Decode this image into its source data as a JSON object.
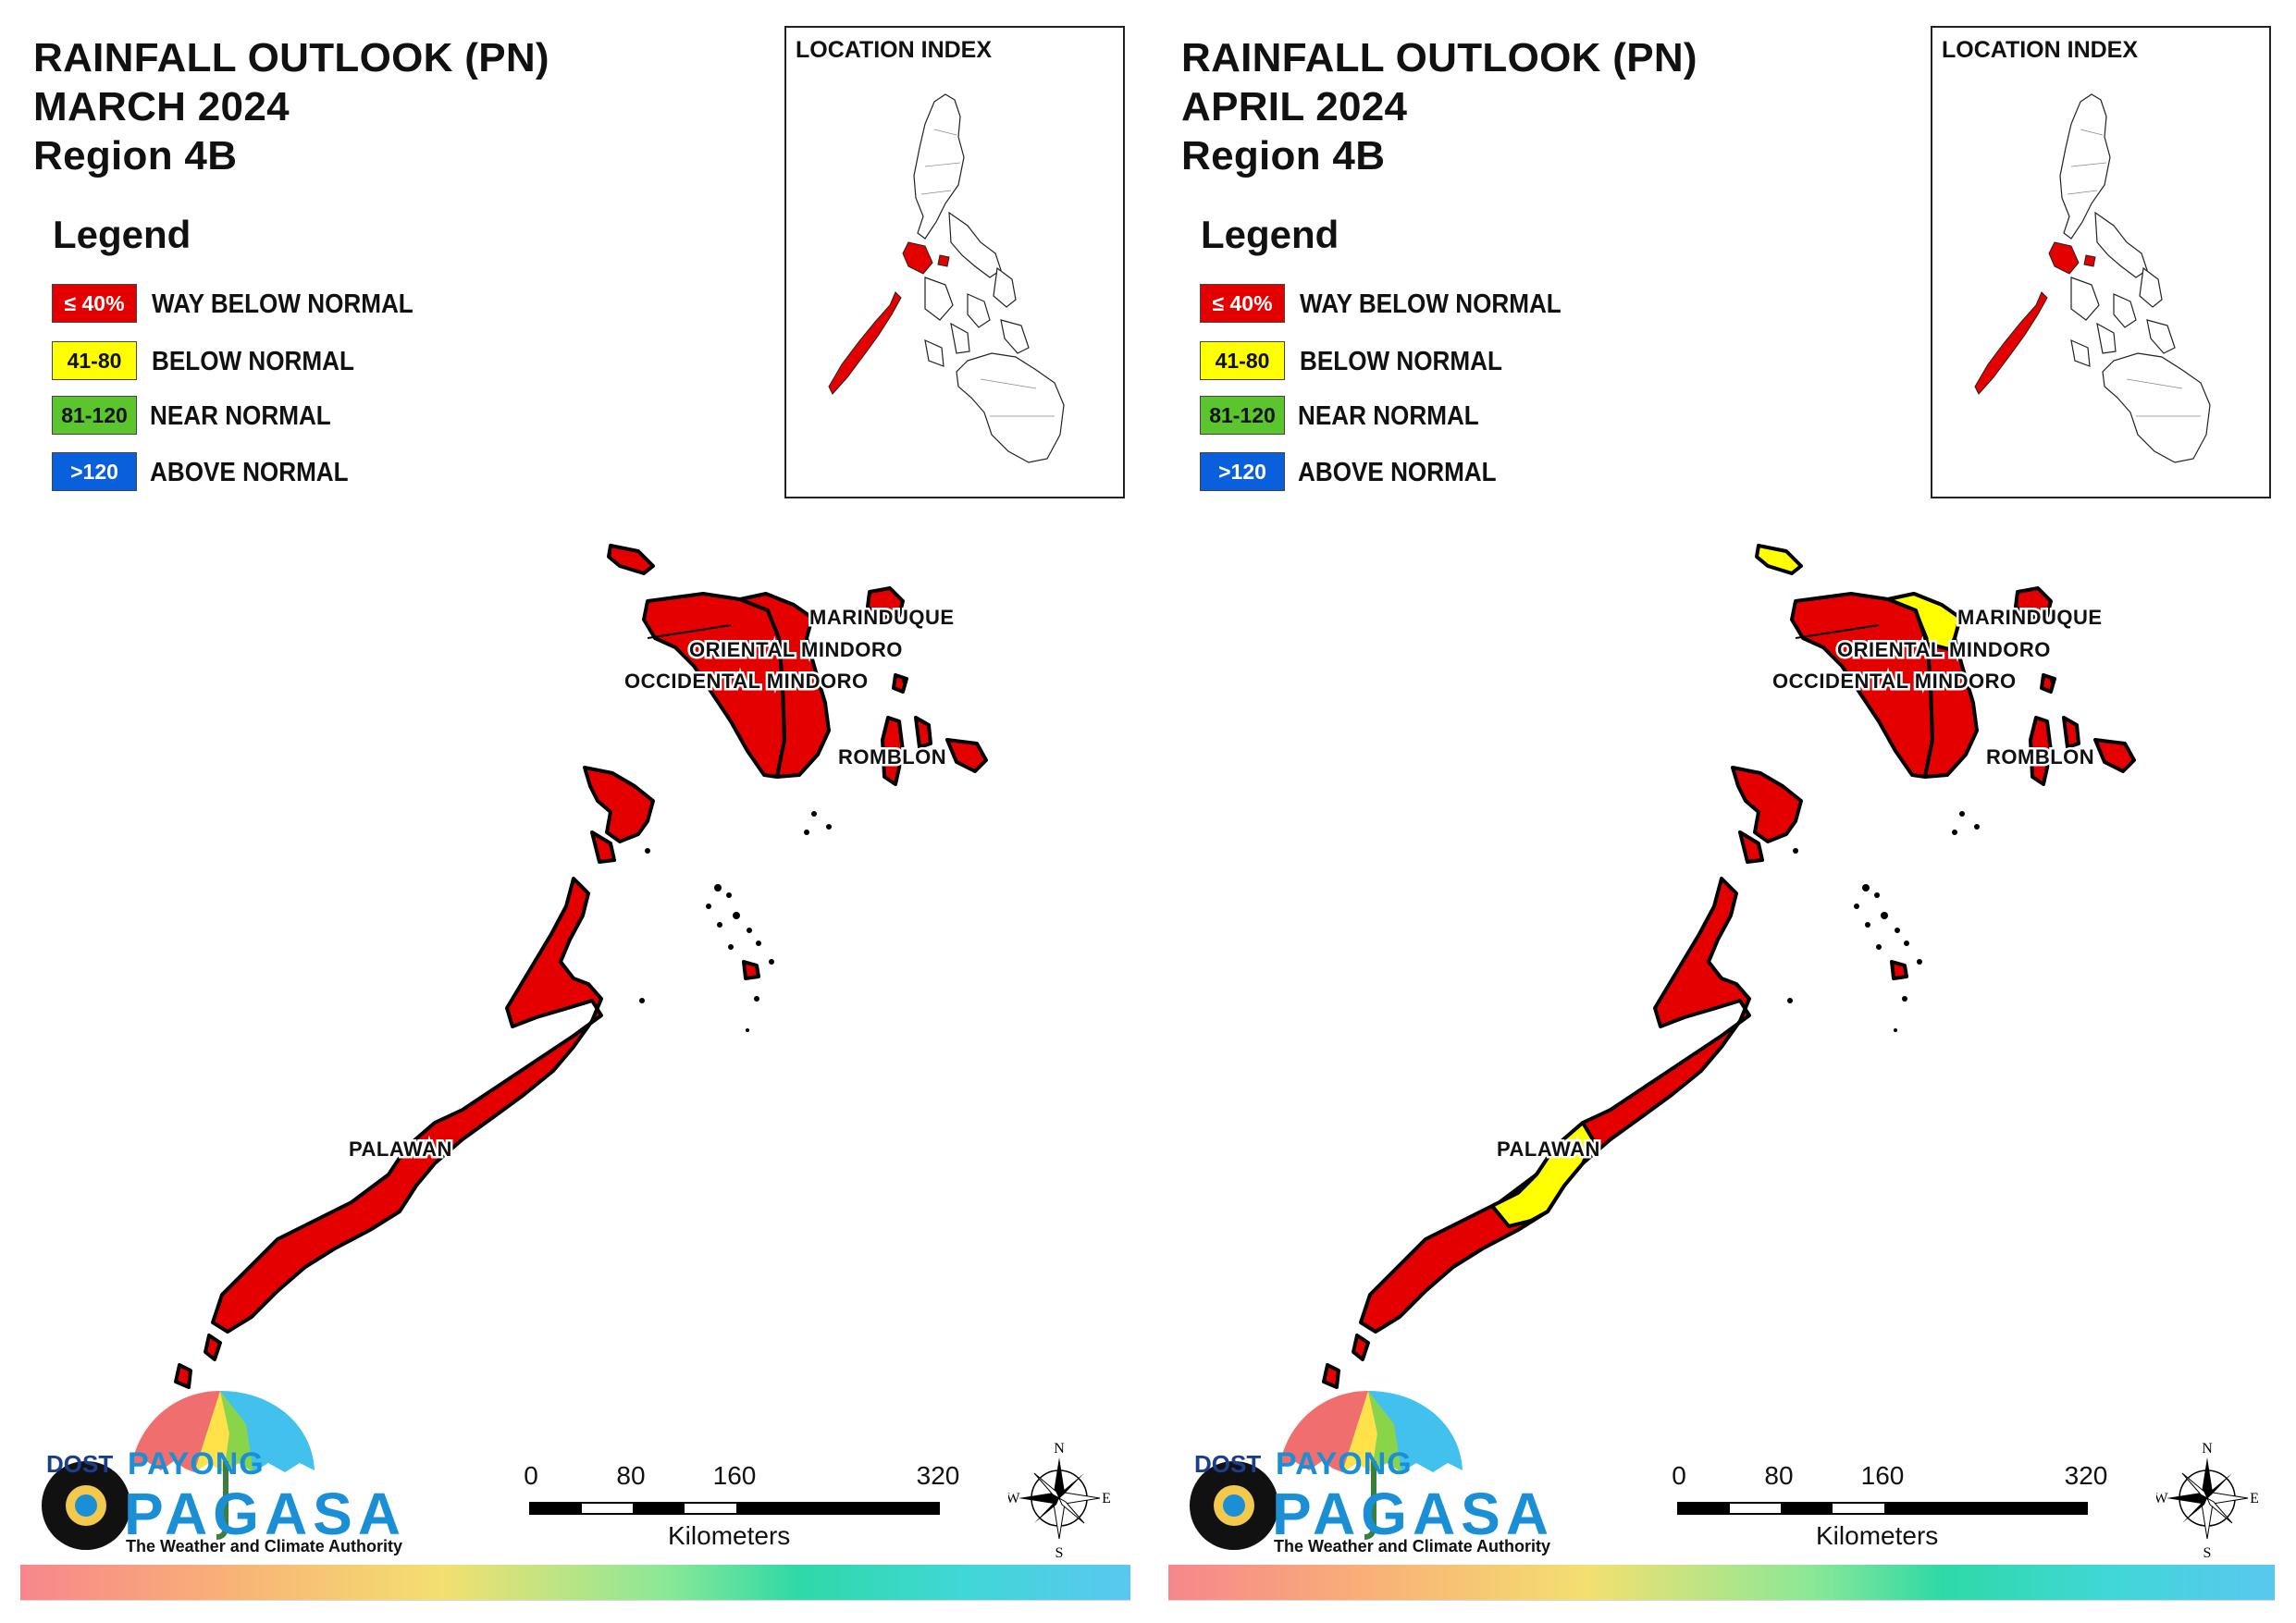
{
  "colors": {
    "way_below": "#e50000",
    "below": "#ffff00",
    "near": "#5ac52c",
    "above": "#0a5fdc"
  },
  "panels": [
    {
      "title_line1": "RAINFALL OUTLOOK (PN)",
      "title_line2": "MARCH 2024",
      "title_line3": "Region 4B",
      "legend_title": "Legend",
      "legend": [
        {
          "code": "≤ 40%",
          "label": "WAY BELOW NORMAL"
        },
        {
          "code": "41-80",
          "label": "BELOW NORMAL"
        },
        {
          "code": "81-120",
          "label": "NEAR NORMAL"
        },
        {
          "code": ">120",
          "label": "ABOVE NORMAL"
        }
      ],
      "location_index_title": "LOCATION INDEX",
      "provinces": {
        "marinduque": {
          "label": "MARINDUQUE",
          "category": "way_below"
        },
        "oriental_mindoro": {
          "label": "ORIENTAL MINDORO",
          "category": "way_below"
        },
        "occidental_mindoro": {
          "label": "OCCIDENTAL MINDORO",
          "category": "way_below"
        },
        "romblon": {
          "label": "ROMBLON",
          "category": "way_below"
        },
        "palawan": {
          "label": "PALAWAN",
          "category": "way_below"
        }
      },
      "logo": {
        "dost": "DOST",
        "payong": "PAYONG",
        "pagasa": "PAGASA",
        "tagline": "The Weather and Climate Authority"
      },
      "scale": {
        "ticks": [
          "0",
          "80",
          "160",
          "320"
        ],
        "units": "Kilometers"
      },
      "compass": {
        "n": "N",
        "e": "E",
        "s": "S",
        "w": "W"
      }
    },
    {
      "title_line1": "RAINFALL OUTLOOK (PN)",
      "title_line2": "APRIL 2024",
      "title_line3": "Region 4B",
      "legend_title": "Legend",
      "legend": [
        {
          "code": "≤ 40%",
          "label": "WAY BELOW NORMAL"
        },
        {
          "code": "41-80",
          "label": "BELOW NORMAL"
        },
        {
          "code": "81-120",
          "label": "NEAR NORMAL"
        },
        {
          "code": ">120",
          "label": "ABOVE NORMAL"
        }
      ],
      "location_index_title": "LOCATION INDEX",
      "provinces": {
        "marinduque": {
          "label": "MARINDUQUE",
          "category": "way_below"
        },
        "oriental_mindoro": {
          "label": "ORIENTAL MINDORO",
          "category": "way_below"
        },
        "occidental_mindoro": {
          "label": "OCCIDENTAL MINDORO",
          "category": "way_below"
        },
        "romblon": {
          "label": "ROMBLON",
          "category": "way_below"
        },
        "palawan": {
          "label": "PALAWAN",
          "category": "way_below"
        }
      },
      "highlights": "Yellow (BELOW NORMAL) areas: northeast Oriental Mindoro, Lubang island, central Palawan",
      "logo": {
        "dost": "DOST",
        "payong": "PAYONG",
        "pagasa": "PAGASA",
        "tagline": "The Weather and Climate Authority"
      },
      "scale": {
        "ticks": [
          "0",
          "80",
          "160",
          "320"
        ],
        "units": "Kilometers"
      },
      "compass": {
        "n": "N",
        "e": "E",
        "s": "S",
        "w": "W"
      }
    }
  ]
}
